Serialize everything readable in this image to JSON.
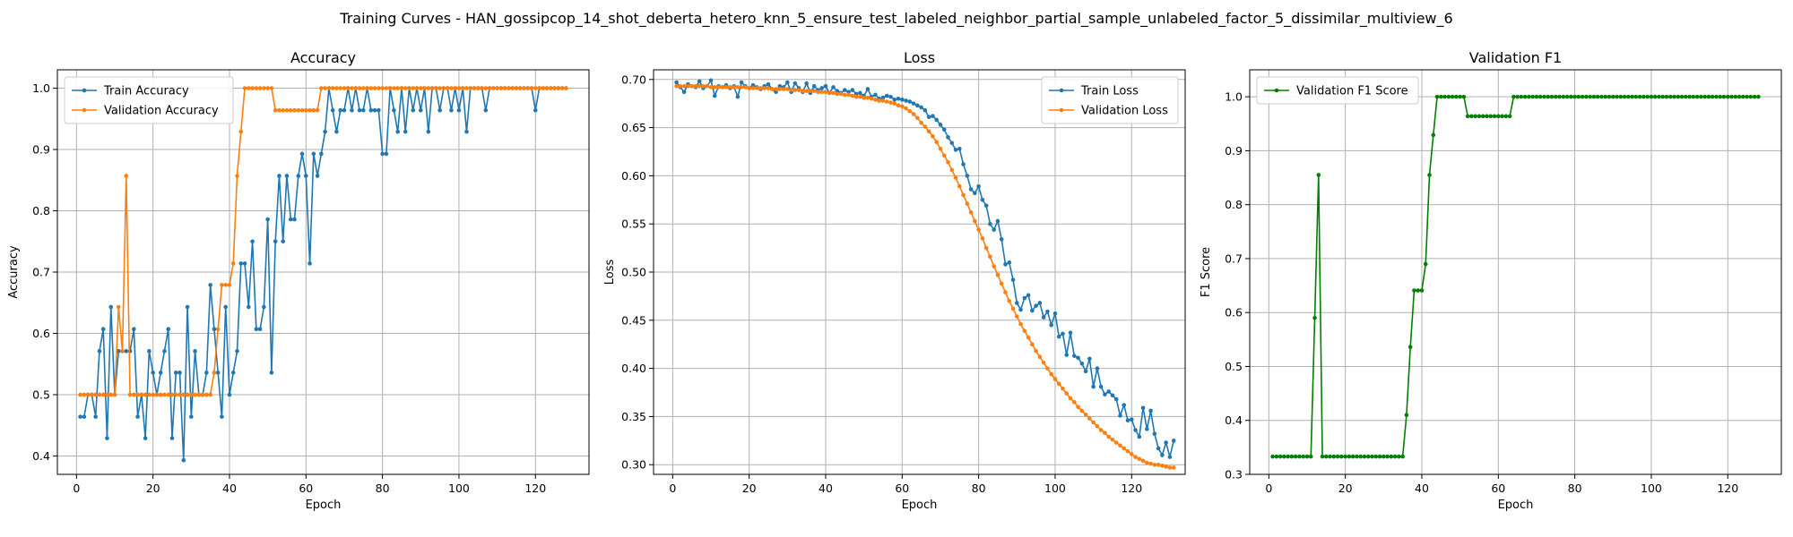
{
  "figure": {
    "suptitle": "Training Curves - HAN_gossipcop_14_shot_deberta_hetero_knn_5_ensure_test_labeled_neighbor_partial_sample_unlabeled_factor_5_dissimilar_multiview_6"
  },
  "colors": {
    "blue": "#1f77b4",
    "orange": "#ff7f0e",
    "green": "#008000",
    "grid": "#b0b0b0"
  },
  "chart_data": [
    {
      "type": "line",
      "title": "Accuracy",
      "xlabel": "Epoch",
      "ylabel": "Accuracy",
      "xlim": [
        -5,
        134
      ],
      "ylim": [
        0.37,
        1.03
      ],
      "xticks": [
        0,
        20,
        40,
        60,
        80,
        100,
        120
      ],
      "yticks": [
        0.4,
        0.5,
        0.6,
        0.7,
        0.8,
        0.9,
        1.0
      ],
      "ytick_labels": [
        "0.4",
        "0.5",
        "0.6",
        "0.7",
        "0.8",
        "0.9",
        "1.0"
      ],
      "grid": true,
      "legend": "upper-left",
      "x_start": 1,
      "series": [
        {
          "name": "Train Accuracy",
          "color": "#1f77b4",
          "values": [
            0.464,
            0.464,
            0.5,
            0.5,
            0.464,
            0.571,
            0.607,
            0.429,
            0.643,
            0.5,
            0.571,
            0.571,
            0.571,
            0.571,
            0.607,
            0.464,
            0.5,
            0.429,
            0.571,
            0.536,
            0.5,
            0.536,
            0.571,
            0.607,
            0.429,
            0.536,
            0.536,
            0.393,
            0.643,
            0.464,
            0.571,
            0.5,
            0.5,
            0.536,
            0.679,
            0.607,
            0.536,
            0.464,
            0.643,
            0.5,
            0.536,
            0.571,
            0.714,
            0.714,
            0.643,
            0.75,
            0.607,
            0.607,
            0.643,
            0.786,
            0.536,
            0.75,
            0.857,
            0.75,
            0.857,
            0.786,
            0.786,
            0.857,
            0.893,
            0.857,
            0.714,
            0.893,
            0.857,
            0.893,
            0.929,
            1.0,
            0.964,
            0.929,
            0.964,
            0.964,
            1.0,
            0.964,
            1.0,
            0.964,
            0.964,
            1.0,
            0.964,
            0.964,
            0.964,
            0.893,
            0.893,
            1.0,
            0.964,
            0.929,
            1.0,
            0.929,
            1.0,
            0.964,
            1.0,
            0.964,
            1.0,
            0.929,
            1.0,
            1.0,
            0.964,
            1.0,
            1.0,
            0.964,
            1.0,
            0.964,
            1.0,
            0.929,
            1.0,
            1.0,
            1.0,
            1.0,
            0.964,
            1.0,
            1.0,
            1.0,
            1.0,
            1.0,
            1.0,
            1.0,
            1.0,
            1.0,
            1.0,
            1.0,
            1.0,
            0.964,
            1.0,
            1.0,
            1.0,
            1.0,
            1.0,
            1.0,
            1.0,
            1.0
          ]
        },
        {
          "name": "Validation Accuracy",
          "color": "#ff7f0e",
          "values": [
            0.5,
            0.5,
            0.5,
            0.5,
            0.5,
            0.5,
            0.5,
            0.5,
            0.5,
            0.5,
            0.643,
            0.571,
            0.857,
            0.5,
            0.5,
            0.5,
            0.5,
            0.5,
            0.5,
            0.5,
            0.5,
            0.5,
            0.5,
            0.5,
            0.5,
            0.5,
            0.5,
            0.5,
            0.5,
            0.5,
            0.5,
            0.5,
            0.5,
            0.5,
            0.5,
            0.536,
            0.607,
            0.679,
            0.679,
            0.679,
            0.714,
            0.857,
            0.929,
            1.0,
            1.0,
            1.0,
            1.0,
            1.0,
            1.0,
            1.0,
            1.0,
            0.964,
            0.964,
            0.964,
            0.964,
            0.964,
            0.964,
            0.964,
            0.964,
            0.964,
            0.964,
            0.964,
            0.964,
            1.0,
            1.0,
            1.0,
            1.0,
            1.0,
            1.0,
            1.0,
            1.0,
            1.0,
            1.0,
            1.0,
            1.0,
            1.0,
            1.0,
            1.0,
            1.0,
            1.0,
            1.0,
            1.0,
            1.0,
            1.0,
            1.0,
            1.0,
            1.0,
            1.0,
            1.0,
            1.0,
            1.0,
            1.0,
            1.0,
            1.0,
            1.0,
            1.0,
            1.0,
            1.0,
            1.0,
            1.0,
            1.0,
            1.0,
            1.0,
            1.0,
            1.0,
            1.0,
            1.0,
            1.0,
            1.0,
            1.0,
            1.0,
            1.0,
            1.0,
            1.0,
            1.0,
            1.0,
            1.0,
            1.0,
            1.0,
            1.0,
            1.0,
            1.0,
            1.0,
            1.0,
            1.0,
            1.0,
            1.0,
            1.0
          ]
        }
      ]
    },
    {
      "type": "line",
      "title": "Loss",
      "xlabel": "Epoch",
      "ylabel": "Loss",
      "xlim": [
        -5,
        134
      ],
      "ylim": [
        0.29,
        0.71
      ],
      "xticks": [
        0,
        20,
        40,
        60,
        80,
        100,
        120
      ],
      "yticks": [
        0.3,
        0.35,
        0.4,
        0.45,
        0.5,
        0.55,
        0.6,
        0.65,
        0.7
      ],
      "ytick_labels": [
        "0.30",
        "0.35",
        "0.40",
        "0.45",
        "0.50",
        "0.55",
        "0.60",
        "0.65",
        "0.70"
      ],
      "grid": true,
      "legend": "upper-right",
      "x_start": 1,
      "series": [
        {
          "name": "Train Loss",
          "color": "#1f77b4",
          "values": [
            0.697,
            0.692,
            0.687,
            0.695,
            0.693,
            0.692,
            0.698,
            0.691,
            0.693,
            0.699,
            0.683,
            0.693,
            0.692,
            0.694,
            0.691,
            0.693,
            0.682,
            0.697,
            0.693,
            0.691,
            0.694,
            0.692,
            0.69,
            0.693,
            0.695,
            0.69,
            0.687,
            0.693,
            0.692,
            0.697,
            0.687,
            0.696,
            0.691,
            0.687,
            0.696,
            0.686,
            0.693,
            0.689,
            0.691,
            0.693,
            0.686,
            0.692,
            0.688,
            0.686,
            0.689,
            0.687,
            0.689,
            0.685,
            0.686,
            0.683,
            0.69,
            0.682,
            0.684,
            0.68,
            0.681,
            0.683,
            0.682,
            0.679,
            0.68,
            0.679,
            0.678,
            0.677,
            0.675,
            0.673,
            0.671,
            0.668,
            0.661,
            0.662,
            0.658,
            0.653,
            0.648,
            0.64,
            0.634,
            0.627,
            0.628,
            0.612,
            0.6,
            0.586,
            0.582,
            0.589,
            0.575,
            0.569,
            0.55,
            0.544,
            0.553,
            0.534,
            0.508,
            0.51,
            0.492,
            0.468,
            0.461,
            0.473,
            0.476,
            0.46,
            0.465,
            0.468,
            0.453,
            0.459,
            0.445,
            0.457,
            0.433,
            0.436,
            0.414,
            0.437,
            0.413,
            0.411,
            0.405,
            0.397,
            0.41,
            0.381,
            0.4,
            0.381,
            0.373,
            0.376,
            0.372,
            0.368,
            0.351,
            0.362,
            0.346,
            0.347,
            0.336,
            0.329,
            0.359,
            0.337,
            0.356,
            0.332,
            0.317,
            0.31,
            0.323,
            0.308,
            0.325
          ]
        },
        {
          "name": "Validation Loss",
          "color": "#ff7f0e",
          "values": [
            0.693,
            0.693,
            0.693,
            0.693,
            0.693,
            0.693,
            0.693,
            0.693,
            0.693,
            0.692,
            0.692,
            0.692,
            0.692,
            0.692,
            0.692,
            0.692,
            0.692,
            0.692,
            0.692,
            0.691,
            0.691,
            0.691,
            0.691,
            0.691,
            0.691,
            0.69,
            0.69,
            0.69,
            0.69,
            0.69,
            0.689,
            0.689,
            0.689,
            0.688,
            0.688,
            0.688,
            0.688,
            0.687,
            0.687,
            0.687,
            0.686,
            0.686,
            0.685,
            0.685,
            0.684,
            0.684,
            0.683,
            0.682,
            0.682,
            0.681,
            0.681,
            0.68,
            0.679,
            0.678,
            0.678,
            0.677,
            0.676,
            0.675,
            0.673,
            0.672,
            0.67,
            0.667,
            0.664,
            0.66,
            0.655,
            0.651,
            0.646,
            0.641,
            0.635,
            0.628,
            0.621,
            0.614,
            0.606,
            0.598,
            0.589,
            0.58,
            0.571,
            0.562,
            0.553,
            0.544,
            0.535,
            0.525,
            0.516,
            0.506,
            0.497,
            0.488,
            0.479,
            0.47,
            0.462,
            0.454,
            0.446,
            0.439,
            0.432,
            0.425,
            0.418,
            0.412,
            0.406,
            0.4,
            0.394,
            0.389,
            0.384,
            0.379,
            0.374,
            0.369,
            0.365,
            0.36,
            0.356,
            0.352,
            0.348,
            0.344,
            0.34,
            0.336,
            0.333,
            0.329,
            0.326,
            0.323,
            0.32,
            0.317,
            0.314,
            0.311,
            0.308,
            0.306,
            0.304,
            0.302,
            0.301,
            0.3,
            0.3,
            0.299,
            0.298,
            0.297,
            0.297
          ]
        }
      ]
    },
    {
      "type": "line",
      "title": "Validation F1",
      "xlabel": "Epoch",
      "ylabel": "F1 Score",
      "xlim": [
        -5,
        134
      ],
      "ylim": [
        0.3,
        1.05
      ],
      "xticks": [
        0,
        20,
        40,
        60,
        80,
        100,
        120
      ],
      "yticks": [
        0.3,
        0.4,
        0.5,
        0.6,
        0.7,
        0.8,
        0.9,
        1.0
      ],
      "ytick_labels": [
        "0.3",
        "0.4",
        "0.5",
        "0.6",
        "0.7",
        "0.8",
        "0.9",
        "1.0"
      ],
      "grid": true,
      "legend": "upper-left",
      "x_start": 1,
      "series": [
        {
          "name": "Validation F1 Score",
          "color": "#008000",
          "values": [
            0.333,
            0.333,
            0.333,
            0.333,
            0.333,
            0.333,
            0.333,
            0.333,
            0.333,
            0.333,
            0.333,
            0.59,
            0.855,
            0.333,
            0.333,
            0.333,
            0.333,
            0.333,
            0.333,
            0.333,
            0.333,
            0.333,
            0.333,
            0.333,
            0.333,
            0.333,
            0.333,
            0.333,
            0.333,
            0.333,
            0.333,
            0.333,
            0.333,
            0.333,
            0.333,
            0.41,
            0.536,
            0.641,
            0.641,
            0.641,
            0.69,
            0.855,
            0.929,
            1.0,
            1.0,
            1.0,
            1.0,
            1.0,
            1.0,
            1.0,
            1.0,
            0.964,
            0.964,
            0.964,
            0.964,
            0.964,
            0.964,
            0.964,
            0.964,
            0.964,
            0.964,
            0.964,
            0.964,
            1.0,
            1.0,
            1.0,
            1.0,
            1.0,
            1.0,
            1.0,
            1.0,
            1.0,
            1.0,
            1.0,
            1.0,
            1.0,
            1.0,
            1.0,
            1.0,
            1.0,
            1.0,
            1.0,
            1.0,
            1.0,
            1.0,
            1.0,
            1.0,
            1.0,
            1.0,
            1.0,
            1.0,
            1.0,
            1.0,
            1.0,
            1.0,
            1.0,
            1.0,
            1.0,
            1.0,
            1.0,
            1.0,
            1.0,
            1.0,
            1.0,
            1.0,
            1.0,
            1.0,
            1.0,
            1.0,
            1.0,
            1.0,
            1.0,
            1.0,
            1.0,
            1.0,
            1.0,
            1.0,
            1.0,
            1.0,
            1.0,
            1.0,
            1.0,
            1.0,
            1.0,
            1.0,
            1.0,
            1.0,
            1.0
          ]
        }
      ]
    }
  ]
}
